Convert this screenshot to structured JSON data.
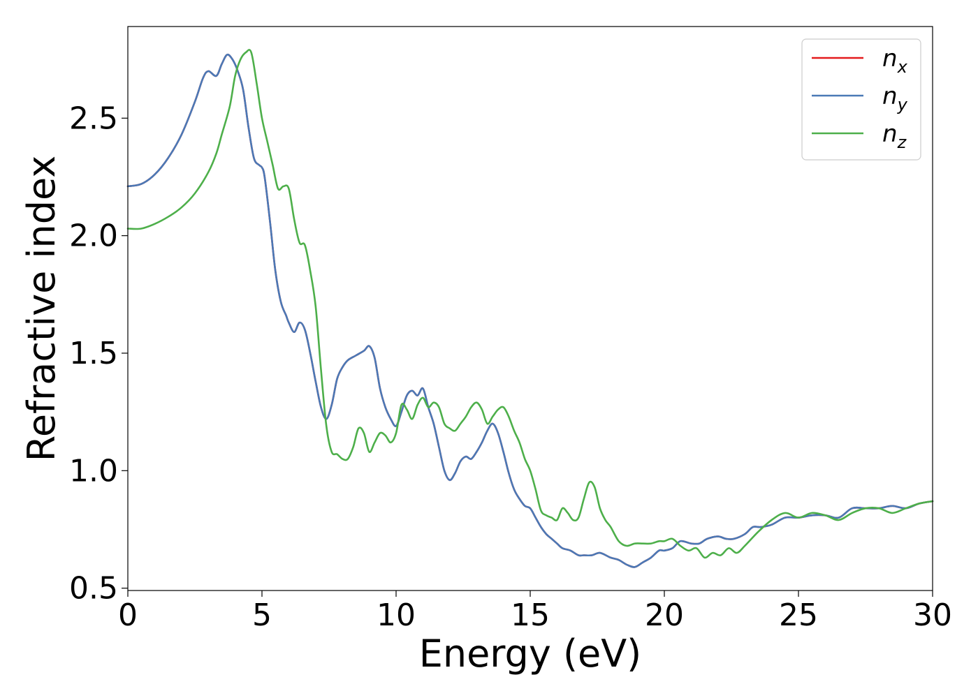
{
  "chart_data": {
    "type": "line",
    "title": "",
    "xlabel": "Energy (eV)",
    "ylabel": "Refractive index",
    "xlim": [
      0,
      30
    ],
    "ylim": [
      0.49,
      2.89
    ],
    "xticks": [
      0,
      5,
      10,
      15,
      20,
      25,
      30
    ],
    "yticks": [
      0.5,
      1.0,
      1.5,
      2.0,
      2.5
    ],
    "xtick_labels": [
      "0",
      "5",
      "10",
      "15",
      "20",
      "25",
      "30"
    ],
    "ytick_labels": [
      "0.5",
      "1.0",
      "1.5",
      "2.0",
      "2.5"
    ],
    "grid": false,
    "legend_position": "top-right",
    "series": [
      {
        "name": "n",
        "subscript": "x",
        "color": "#e41a1c",
        "x": [
          0,
          0.5,
          1.0,
          1.5,
          2.0,
          2.5,
          2.8,
          3.0,
          3.3,
          3.5,
          3.7,
          3.9,
          4.1,
          4.3,
          4.5,
          4.7,
          4.9,
          5.0,
          5.1,
          5.3,
          5.5,
          5.7,
          5.9,
          6.0,
          6.2,
          6.4,
          6.6,
          6.8,
          7.0,
          7.2,
          7.4,
          7.6,
          7.8,
          8.0,
          8.2,
          8.5,
          8.8,
          9.0,
          9.2,
          9.4,
          9.6,
          9.8,
          10.0,
          10.2,
          10.4,
          10.6,
          10.8,
          11.0,
          11.2,
          11.4,
          11.6,
          11.8,
          12.0,
          12.2,
          12.4,
          12.6,
          12.8,
          13.0,
          13.2,
          13.4,
          13.6,
          13.8,
          14.0,
          14.2,
          14.4,
          14.6,
          14.8,
          15.0,
          15.2,
          15.4,
          15.6,
          15.8,
          16.0,
          16.2,
          16.5,
          16.8,
          17.0,
          17.3,
          17.6,
          18.0,
          18.3,
          18.6,
          18.9,
          19.2,
          19.5,
          19.8,
          20.0,
          20.3,
          20.6,
          21.0,
          21.3,
          21.6,
          22.0,
          22.3,
          22.6,
          23.0,
          23.3,
          23.6,
          24.0,
          24.5,
          25.0,
          25.5,
          26.0,
          26.5,
          27.0,
          27.5,
          28.0,
          28.5,
          29.0,
          29.5,
          30.0
        ],
        "values": [
          2.21,
          2.22,
          2.26,
          2.33,
          2.43,
          2.57,
          2.67,
          2.7,
          2.68,
          2.73,
          2.77,
          2.75,
          2.7,
          2.62,
          2.46,
          2.33,
          2.3,
          2.29,
          2.25,
          2.06,
          1.85,
          1.72,
          1.66,
          1.63,
          1.59,
          1.63,
          1.6,
          1.5,
          1.38,
          1.27,
          1.22,
          1.28,
          1.39,
          1.44,
          1.47,
          1.49,
          1.51,
          1.53,
          1.48,
          1.35,
          1.27,
          1.22,
          1.19,
          1.25,
          1.32,
          1.34,
          1.32,
          1.35,
          1.27,
          1.2,
          1.1,
          1.0,
          0.96,
          0.99,
          1.04,
          1.06,
          1.05,
          1.08,
          1.12,
          1.17,
          1.2,
          1.16,
          1.08,
          0.99,
          0.92,
          0.88,
          0.85,
          0.84,
          0.8,
          0.76,
          0.73,
          0.71,
          0.69,
          0.67,
          0.66,
          0.64,
          0.64,
          0.64,
          0.65,
          0.63,
          0.62,
          0.6,
          0.59,
          0.61,
          0.63,
          0.66,
          0.66,
          0.67,
          0.7,
          0.69,
          0.69,
          0.71,
          0.72,
          0.71,
          0.71,
          0.73,
          0.76,
          0.76,
          0.77,
          0.8,
          0.8,
          0.81,
          0.81,
          0.8,
          0.84,
          0.84,
          0.84,
          0.85,
          0.84,
          0.86,
          0.87
        ]
      },
      {
        "name": "n",
        "subscript": "y",
        "color": "#4a79b6",
        "x": [
          0,
          0.5,
          1.0,
          1.5,
          2.0,
          2.5,
          2.8,
          3.0,
          3.3,
          3.5,
          3.7,
          3.9,
          4.1,
          4.3,
          4.5,
          4.7,
          4.9,
          5.0,
          5.1,
          5.3,
          5.5,
          5.7,
          5.9,
          6.0,
          6.2,
          6.4,
          6.6,
          6.8,
          7.0,
          7.2,
          7.4,
          7.6,
          7.8,
          8.0,
          8.2,
          8.5,
          8.8,
          9.0,
          9.2,
          9.4,
          9.6,
          9.8,
          10.0,
          10.2,
          10.4,
          10.6,
          10.8,
          11.0,
          11.2,
          11.4,
          11.6,
          11.8,
          12.0,
          12.2,
          12.4,
          12.6,
          12.8,
          13.0,
          13.2,
          13.4,
          13.6,
          13.8,
          14.0,
          14.2,
          14.4,
          14.6,
          14.8,
          15.0,
          15.2,
          15.4,
          15.6,
          15.8,
          16.0,
          16.2,
          16.5,
          16.8,
          17.0,
          17.3,
          17.6,
          18.0,
          18.3,
          18.6,
          18.9,
          19.2,
          19.5,
          19.8,
          20.0,
          20.3,
          20.6,
          21.0,
          21.3,
          21.6,
          22.0,
          22.3,
          22.6,
          23.0,
          23.3,
          23.6,
          24.0,
          24.5,
          25.0,
          25.5,
          26.0,
          26.5,
          27.0,
          27.5,
          28.0,
          28.5,
          29.0,
          29.5,
          30.0
        ],
        "values": [
          2.21,
          2.22,
          2.26,
          2.33,
          2.43,
          2.57,
          2.67,
          2.7,
          2.68,
          2.73,
          2.77,
          2.75,
          2.7,
          2.62,
          2.46,
          2.33,
          2.3,
          2.29,
          2.25,
          2.06,
          1.85,
          1.72,
          1.66,
          1.63,
          1.59,
          1.63,
          1.6,
          1.5,
          1.38,
          1.27,
          1.22,
          1.28,
          1.39,
          1.44,
          1.47,
          1.49,
          1.51,
          1.53,
          1.48,
          1.35,
          1.27,
          1.22,
          1.19,
          1.25,
          1.32,
          1.34,
          1.32,
          1.35,
          1.27,
          1.2,
          1.1,
          1.0,
          0.96,
          0.99,
          1.04,
          1.06,
          1.05,
          1.08,
          1.12,
          1.17,
          1.2,
          1.16,
          1.08,
          0.99,
          0.92,
          0.88,
          0.85,
          0.84,
          0.8,
          0.76,
          0.73,
          0.71,
          0.69,
          0.67,
          0.66,
          0.64,
          0.64,
          0.64,
          0.65,
          0.63,
          0.62,
          0.6,
          0.59,
          0.61,
          0.63,
          0.66,
          0.66,
          0.67,
          0.7,
          0.69,
          0.69,
          0.71,
          0.72,
          0.71,
          0.71,
          0.73,
          0.76,
          0.76,
          0.77,
          0.8,
          0.8,
          0.81,
          0.81,
          0.8,
          0.84,
          0.84,
          0.84,
          0.85,
          0.84,
          0.86,
          0.87
        ]
      },
      {
        "name": "n",
        "subscript": "z",
        "color": "#4daf4a",
        "x": [
          0,
          0.5,
          1.0,
          1.5,
          2.0,
          2.5,
          3.0,
          3.3,
          3.5,
          3.8,
          4.0,
          4.2,
          4.4,
          4.6,
          4.8,
          5.0,
          5.2,
          5.4,
          5.6,
          5.8,
          6.0,
          6.2,
          6.4,
          6.6,
          6.8,
          7.0,
          7.2,
          7.4,
          7.6,
          7.8,
          8.0,
          8.2,
          8.4,
          8.6,
          8.8,
          9.0,
          9.2,
          9.4,
          9.6,
          9.8,
          10.0,
          10.2,
          10.4,
          10.6,
          10.8,
          11.0,
          11.2,
          11.4,
          11.6,
          11.8,
          12.0,
          12.2,
          12.4,
          12.6,
          12.8,
          13.0,
          13.2,
          13.4,
          13.6,
          13.8,
          14.0,
          14.2,
          14.4,
          14.6,
          14.8,
          15.0,
          15.2,
          15.4,
          15.6,
          15.8,
          16.0,
          16.2,
          16.4,
          16.6,
          16.8,
          17.0,
          17.2,
          17.4,
          17.6,
          17.8,
          18.0,
          18.3,
          18.6,
          18.9,
          19.2,
          19.5,
          19.8,
          20.0,
          20.3,
          20.6,
          20.9,
          21.2,
          21.5,
          21.8,
          22.1,
          22.4,
          22.7,
          23.0,
          23.5,
          24.0,
          24.5,
          25.0,
          25.5,
          26.0,
          26.5,
          27.0,
          27.5,
          28.0,
          28.5,
          29.0,
          29.5,
          30.0
        ],
        "values": [
          2.03,
          2.03,
          2.05,
          2.08,
          2.12,
          2.18,
          2.27,
          2.35,
          2.43,
          2.55,
          2.68,
          2.75,
          2.78,
          2.78,
          2.65,
          2.5,
          2.4,
          2.3,
          2.2,
          2.21,
          2.2,
          2.07,
          1.97,
          1.96,
          1.85,
          1.7,
          1.43,
          1.19,
          1.08,
          1.07,
          1.05,
          1.05,
          1.1,
          1.18,
          1.16,
          1.08,
          1.12,
          1.16,
          1.15,
          1.12,
          1.16,
          1.28,
          1.26,
          1.22,
          1.28,
          1.31,
          1.27,
          1.29,
          1.27,
          1.2,
          1.18,
          1.17,
          1.2,
          1.23,
          1.27,
          1.29,
          1.26,
          1.2,
          1.23,
          1.26,
          1.27,
          1.23,
          1.17,
          1.12,
          1.05,
          1.0,
          0.92,
          0.83,
          0.81,
          0.8,
          0.79,
          0.84,
          0.82,
          0.79,
          0.8,
          0.88,
          0.95,
          0.93,
          0.84,
          0.79,
          0.76,
          0.7,
          0.68,
          0.69,
          0.69,
          0.69,
          0.7,
          0.7,
          0.71,
          0.68,
          0.66,
          0.67,
          0.63,
          0.65,
          0.64,
          0.67,
          0.65,
          0.68,
          0.74,
          0.79,
          0.82,
          0.8,
          0.82,
          0.81,
          0.79,
          0.82,
          0.84,
          0.84,
          0.82,
          0.84,
          0.86,
          0.87
        ]
      }
    ]
  }
}
